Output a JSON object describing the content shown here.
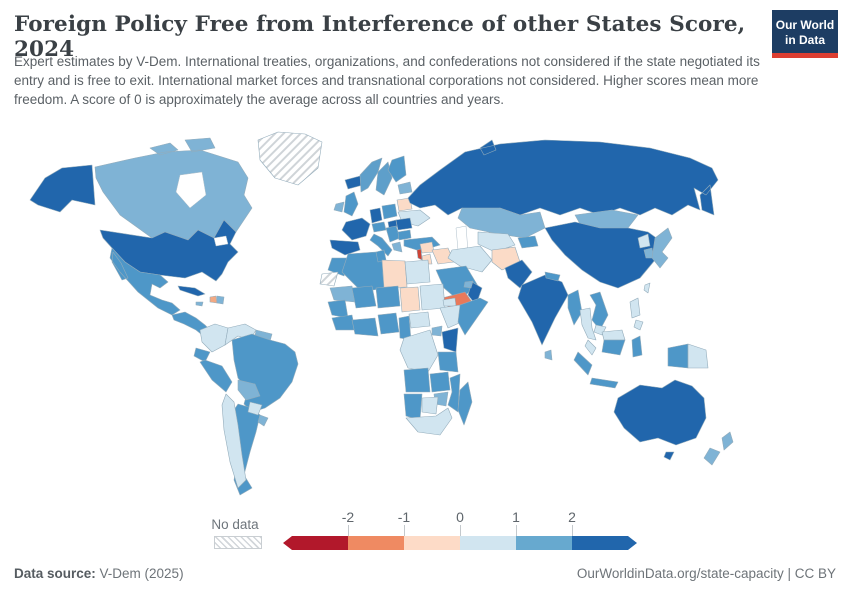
{
  "header": {
    "title": "Foreign Policy Free from Interference of other States Score, 2024",
    "subtitle": "Expert estimates by V-Dem. International treaties, organizations, and confederations not considered if the state negotiated its entry and is free to exit. International market forces and transnational corporations not considered. Higher scores mean more freedom. A score of 0 is approximately the average across all countries and years.",
    "logo_line1": "Our World",
    "logo_line2": "in Data"
  },
  "legend": {
    "no_data_label": "No data",
    "ticks": [
      "-2",
      "-1",
      "0",
      "1",
      "2"
    ],
    "bin_colors": [
      "#b2182b",
      "#ef8a62",
      "#fddbc7",
      "#d1e5f0",
      "#67a9cf",
      "#2166ac"
    ]
  },
  "footer": {
    "source_label": "Data source:",
    "source_value": " V-Dem (2025)",
    "right_text": "OurWorldinData.org/state-capacity | CC BY"
  },
  "chart_data": {
    "type": "choropleth",
    "title": "Foreign Policy Free from Interference of other States Score, 2024",
    "value_range": [
      -2,
      2
    ],
    "legend_ticks": [
      -2,
      -1,
      0,
      1,
      2
    ],
    "bins": [
      {
        "label": "below -2",
        "color": "#b2182b"
      },
      {
        "label": "-2 to -1",
        "color": "#ef8a62"
      },
      {
        "label": "-1 to 0",
        "color": "#fddbc7"
      },
      {
        "label": "0 to 1",
        "color": "#d1e5f0"
      },
      {
        "label": "1 to 2",
        "color": "#67a9cf"
      },
      {
        "label": "above 2",
        "color": "#2166ac"
      }
    ],
    "countries": {
      "United States": "above 2",
      "Canada": "1 to 2",
      "Greenland": "no data",
      "Iceland": "above 2",
      "Mexico": "1 to 2",
      "Cuba": "above 2",
      "Haiti": "-1 to 0",
      "Dominican Republic": "1 to 2",
      "Colombia": "0 to 1",
      "Venezuela": "0 to 1",
      "Peru": "1 to 2",
      "Brazil": "1 to 2",
      "Bolivia": "1 to 2",
      "Paraguay": "0 to 1",
      "Chile": "0 to 1",
      "Argentina": "1 to 2",
      "United Kingdom": "1 to 2",
      "Ireland": "1 to 2",
      "France": "above 2",
      "Spain": "above 2",
      "Portugal": "above 2",
      "Germany": "above 2",
      "Norway": "1 to 2",
      "Sweden": "1 to 2",
      "Finland": "1 to 2",
      "Poland": "1 to 2",
      "Belarus": "-1 to 0",
      "Ukraine": "0 to 1",
      "Romania": "above 2",
      "Hungary": "above 2",
      "Italy": "1 to 2",
      "Greece": "1 to 2",
      "Turkey": "1 to 2",
      "Russia": "above 2",
      "Kazakhstan": "1 to 2",
      "Mongolia": "1 to 2",
      "China": "above 2",
      "India": "above 2",
      "Pakistan": "above 2",
      "Afghanistan": "-1 to 0",
      "Iran": "0 to 1",
      "Iraq": "-1 to 0",
      "Syria": "-1 to 0",
      "Jordan": "-1 to 0",
      "Israel": "-2 to -1",
      "Saudi Arabia": "1 to 2",
      "Yemen": "-2 to -1",
      "Oman": "above 2",
      "Egypt": "0 to 1",
      "Libya": "-1 to 0",
      "Algeria": "1 to 2",
      "Morocco": "1 to 2",
      "Western Sahara": "no data",
      "Chad": "-1 to 0",
      "Sudan": "0 to 1",
      "Ethiopia": "0 to 1",
      "Somalia": "1 to 2",
      "Kenya": "above 2",
      "Tanzania": "1 to 2",
      "DR Congo": "0 to 1",
      "Nigeria": "1 to 2",
      "Angola": "1 to 2",
      "Zambia": "1 to 2",
      "Mozambique": "1 to 2",
      "Botswana": "0 to 1",
      "South Africa": "0 to 1",
      "Madagascar": "1 to 2",
      "Uzbekistan": "0 to 1",
      "Turkmenistan": "0 to 1",
      "Myanmar": "1 to 2",
      "Thailand": "0 to 1",
      "Vietnam": "1 to 2",
      "Malaysia": "0 to 1",
      "Indonesia": "1 to 2",
      "Philippines": "0 to 1",
      "Papua New Guinea": "0 to 1",
      "North Korea": "0 to 1",
      "South Korea": "1 to 2",
      "Japan": "1 to 2",
      "Taiwan": "0 to 1",
      "Australia": "above 2",
      "New Zealand": "1 to 2"
    }
  },
  "map": {
    "fills": {
      "alaska": "#2166ac",
      "canada": "#7fb3d5",
      "greenland": "nodata",
      "iceland": "#2166ac",
      "usa": "#2166ac",
      "mexico": "#4e97c8",
      "central-america": "#4e97c8",
      "cuba": "#2166ac",
      "jamaica": "#7fb3d5",
      "haiti": "#f2a983",
      "dominican-republic": "#7fb3d5",
      "colombia": "#d1e5f0",
      "venezuela": "#d1e5f0",
      "guyanas": "#7fb3d5",
      "ecuador": "#4e97c8",
      "peru": "#4e97c8",
      "brazil": "#4e97c8",
      "bolivia": "#7fb3d5",
      "paraguay": "#d1e5f0",
      "chile": "#d1e5f0",
      "argentina": "#4e97c8",
      "uruguay": "#7fb3d5",
      "norway": "#5e9fca",
      "sweden": "#5e9fca",
      "finland": "#4e97c8",
      "baltics": "#7fb3d5",
      "ireland": "#7fb3d5",
      "uk": "#4e97c8",
      "france": "#2166ac",
      "spain": "#2166ac",
      "germany": "#2166ac",
      "poland": "#4e97c8",
      "belarus": "#fbdbc7",
      "ukraine": "#d1e5f0",
      "czech-austria": "#4e97c8",
      "italy": "#4e97c8",
      "balkans": "#4e97c8",
      "romania": "#2166ac",
      "hungary": "#2166ac",
      "greece": "#7fb3d5",
      "bulgaria": "#4e97c8",
      "turkey": "#4e97c8",
      "russia": "#2166ac",
      "kazakhstan": "#7fb3d5",
      "uzbek-turkmen": "#d1e5f0",
      "kyrgyz-tajik": "#4e97c8",
      "mongolia": "#7fb3d5",
      "china": "#2166ac",
      "iran": "#d1e5f0",
      "afghanistan": "#fbdbc7",
      "pakistan": "#2166ac",
      "india": "#2166ac",
      "sri-lanka": "#7fb3d5",
      "nepal": "#4e97c8",
      "myanmar": "#4e97c8",
      "thailand": "#d1e5f0",
      "vietnam-laos": "#4e97c8",
      "cambodia": "#d1e5f0",
      "malaysia": "#d1e5f0",
      "sumatra": "#4e97c8",
      "java": "#4e97c8",
      "borneo-my": "#d1e5f0",
      "borneo-id": "#4e97c8",
      "sulawesi": "#4e97c8",
      "west-papua": "#4e97c8",
      "png": "#d1e5f0",
      "philippines": "#d1e5f0",
      "taiwan": "#d1e5f0",
      "north-korea": "#d1e5f0",
      "south-korea": "#7fb3d5",
      "japan": "#7fb3d5",
      "syria": "#fbdbc7",
      "iraq": "#fbdbc7",
      "jordan": "#fbdbc7",
      "israel": "#cf4436",
      "saudi": "#4e97c8",
      "yemen": "#e8795b",
      "oman": "#2166ac",
      "uae": "#7fb3d5",
      "egypt": "#d1e5f0",
      "libya": "#fbdbc7",
      "tunisia": "#4e97c8",
      "algeria": "#4e97c8",
      "morocco": "#4e97c8",
      "w-sahara": "nodata",
      "mauritania": "#7fb3d5",
      "mali": "#4e97c8",
      "niger": "#4e97c8",
      "chad": "#fbdbc7",
      "sudan": "#d1e5f0",
      "eritrea": "#d1e5f0",
      "ethiopia": "#d1e5f0",
      "somalia": "#4e97c8",
      "senegal-region": "#4e97c8",
      "guinea-region": "#4e97c8",
      "ivory-ghana": "#4e97c8",
      "nigeria": "#4e97c8",
      "cameroon": "#4e97c8",
      "car": "#d1e5f0",
      "drc": "#d1e5f0",
      "uganda": "#7fb3d5",
      "kenya": "#2166ac",
      "tanzania": "#4e97c8",
      "angola": "#4e97c8",
      "zambia": "#4e97c8",
      "mozambique": "#4e97c8",
      "zimbabwe": "#7fb3d5",
      "namibia": "#4e97c8",
      "botswana": "#d1e5f0",
      "south-africa": "#d1e5f0",
      "madagascar": "#4e97c8",
      "australia": "#2166ac",
      "tasmania": "#2166ac",
      "nz-north": "#7fb3d5",
      "nz-south": "#7fb3d5"
    }
  }
}
